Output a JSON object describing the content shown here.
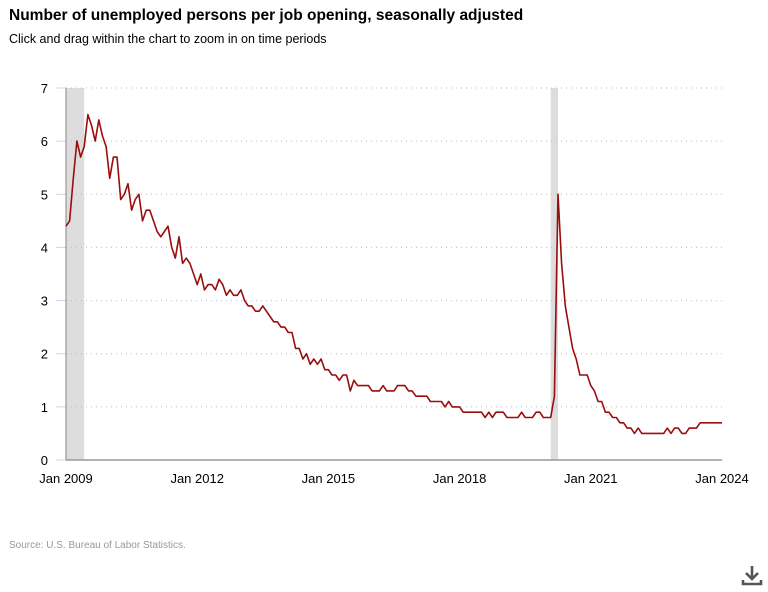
{
  "header": {
    "title": "Number of unemployed persons per job opening, seasonally adjusted",
    "subtitle": "Click and drag within the chart to zoom in on time periods"
  },
  "footer": {
    "source": "Source: U.S. Bureau of Labor Statistics.",
    "download_icon": "download-icon"
  },
  "chart_data": {
    "type": "line",
    "title": "Number of unemployed persons per job opening, seasonally adjusted",
    "xlabel": "",
    "ylabel": "",
    "x_start": "Jan 2009",
    "x_end": "Jan 2024",
    "frequency": "monthly",
    "xlim": [
      "Jan 2009",
      "Jan 2024"
    ],
    "ylim": [
      0,
      7
    ],
    "y_ticks": [
      "0",
      "1",
      "2",
      "3",
      "4",
      "5",
      "6",
      "7"
    ],
    "x_ticks": [
      "Jan 2009",
      "Jan 2012",
      "Jan 2015",
      "Jan 2018",
      "Jan 2021",
      "Jan 2024"
    ],
    "grid": "horizontal dotted",
    "line_color": "#9b0d0d",
    "recession_shading": [
      {
        "start": "Jan 2009",
        "end": "Jun 2009"
      },
      {
        "start": "Feb 2020",
        "end": "Apr 2020"
      }
    ],
    "shading_color": "#dddddd",
    "series": [
      {
        "values": [
          4.4,
          4.5,
          5.3,
          6.0,
          5.7,
          5.9,
          6.5,
          6.3,
          6.0,
          6.4,
          6.1,
          5.9,
          5.3,
          5.7,
          5.7,
          4.9,
          5.0,
          5.2,
          4.7,
          4.9,
          5.0,
          4.5,
          4.7,
          4.7,
          4.5,
          4.3,
          4.2,
          4.3,
          4.4,
          4.0,
          3.8,
          4.2,
          3.7,
          3.8,
          3.7,
          3.5,
          3.3,
          3.5,
          3.2,
          3.3,
          3.3,
          3.2,
          3.4,
          3.3,
          3.1,
          3.2,
          3.1,
          3.1,
          3.2,
          3.0,
          2.9,
          2.9,
          2.8,
          2.8,
          2.9,
          2.8,
          2.7,
          2.6,
          2.6,
          2.5,
          2.5,
          2.4,
          2.4,
          2.1,
          2.1,
          1.9,
          2.0,
          1.8,
          1.9,
          1.8,
          1.9,
          1.7,
          1.7,
          1.6,
          1.6,
          1.5,
          1.6,
          1.6,
          1.3,
          1.5,
          1.4,
          1.4,
          1.4,
          1.4,
          1.3,
          1.3,
          1.3,
          1.4,
          1.3,
          1.3,
          1.3,
          1.4,
          1.4,
          1.4,
          1.3,
          1.3,
          1.2,
          1.2,
          1.2,
          1.2,
          1.1,
          1.1,
          1.1,
          1.1,
          1.0,
          1.1,
          1.0,
          1.0,
          1.0,
          0.9,
          0.9,
          0.9,
          0.9,
          0.9,
          0.9,
          0.8,
          0.9,
          0.8,
          0.9,
          0.9,
          0.9,
          0.8,
          0.8,
          0.8,
          0.8,
          0.9,
          0.8,
          0.8,
          0.8,
          0.9,
          0.9,
          0.8,
          0.8,
          0.8,
          1.2,
          5.0,
          3.7,
          2.9,
          2.5,
          2.1,
          1.9,
          1.6,
          1.6,
          1.6,
          1.4,
          1.3,
          1.1,
          1.1,
          0.9,
          0.9,
          0.8,
          0.8,
          0.7,
          0.7,
          0.6,
          0.6,
          0.5,
          0.6,
          0.5,
          0.5,
          0.5,
          0.5,
          0.5,
          0.5,
          0.5,
          0.6,
          0.5,
          0.6,
          0.6,
          0.5,
          0.5,
          0.6,
          0.6,
          0.6,
          0.7,
          0.7,
          0.7,
          0.7,
          0.7,
          0.7,
          0.7
        ]
      }
    ]
  }
}
